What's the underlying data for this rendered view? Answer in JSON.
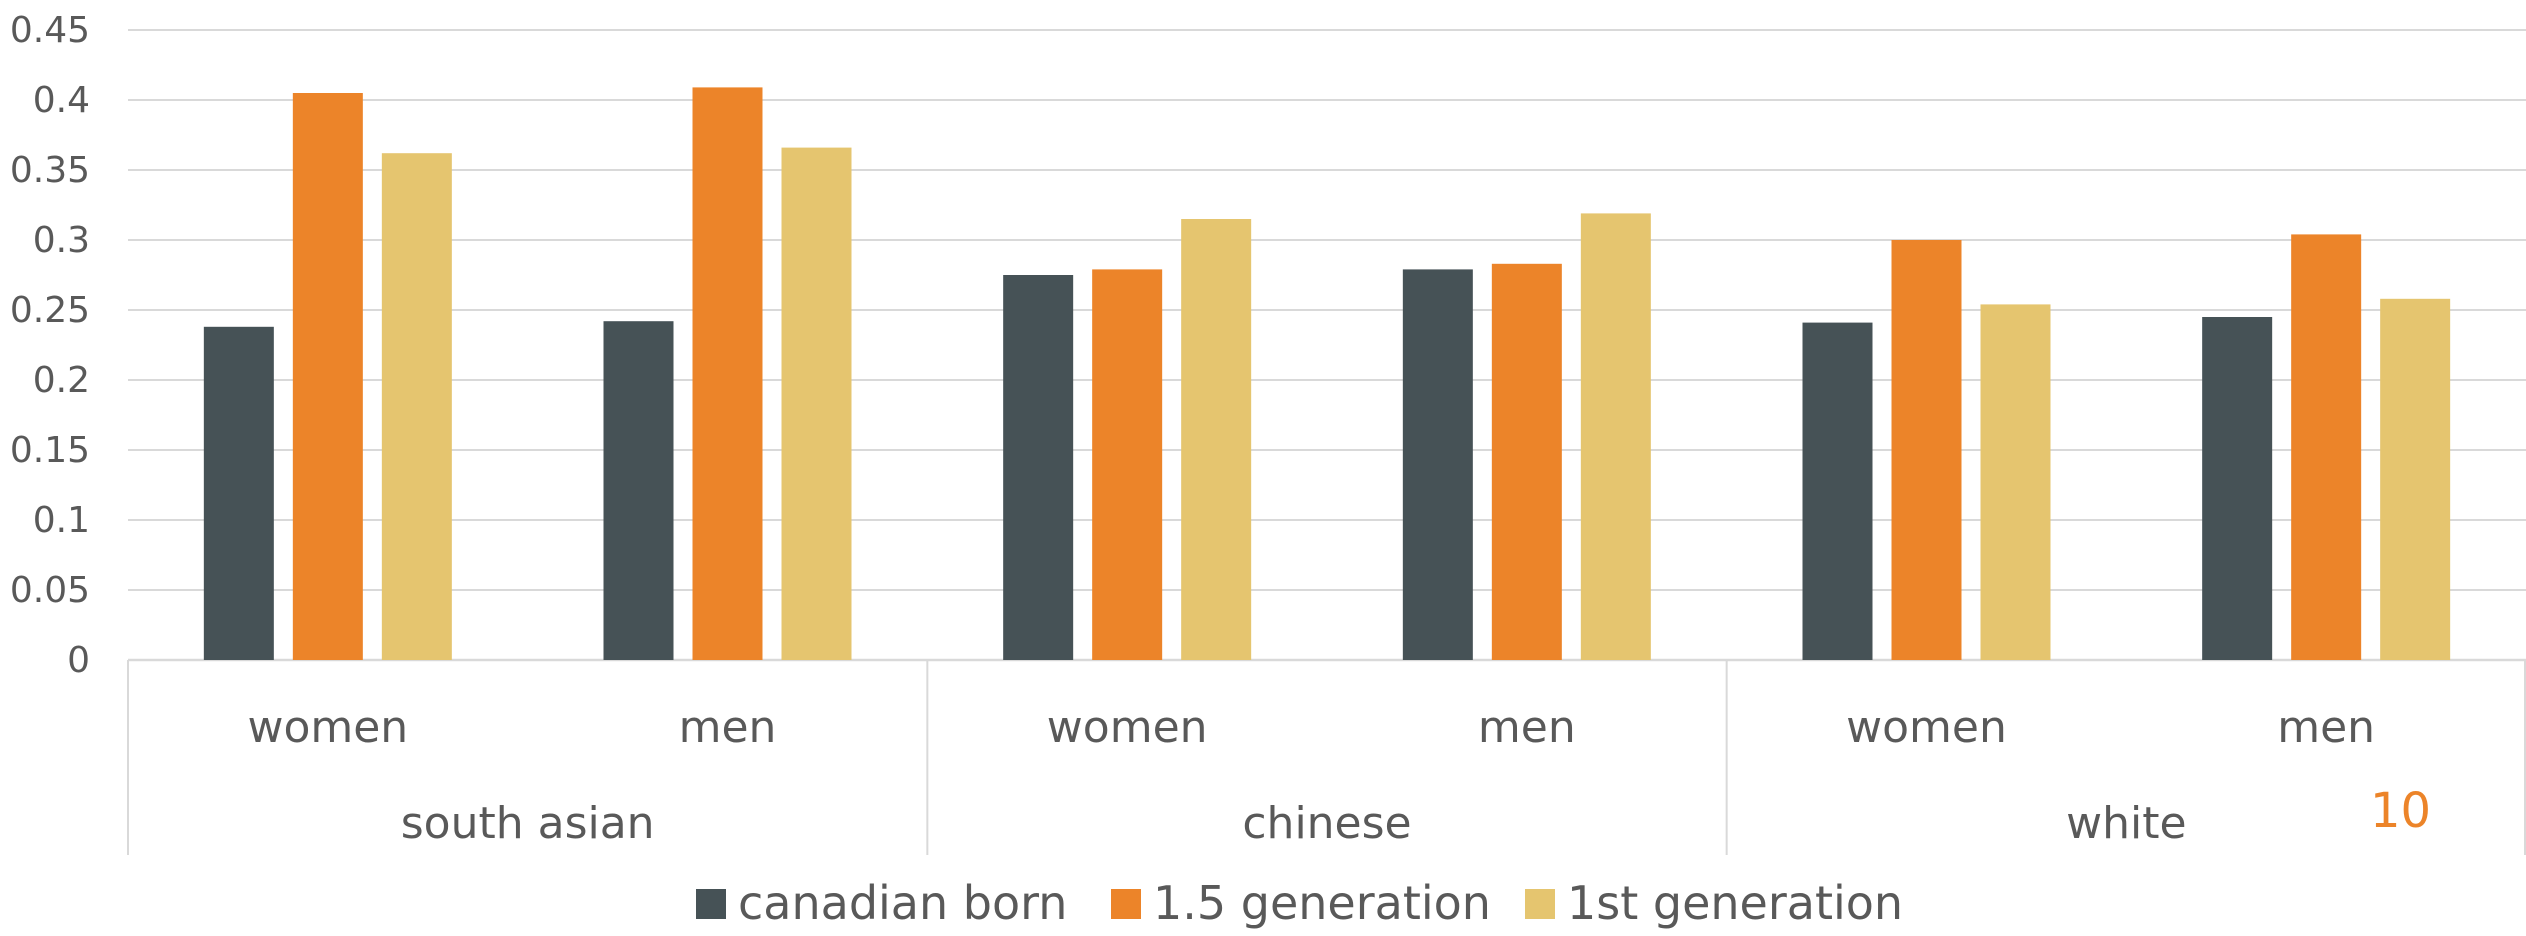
{
  "chart_data": {
    "type": "bar",
    "groups": [
      {
        "name": "south asian",
        "subcategories": [
          "women",
          "men"
        ]
      },
      {
        "name": "chinese",
        "subcategories": [
          "women",
          "men"
        ]
      },
      {
        "name": "white",
        "subcategories": [
          "women",
          "men"
        ]
      }
    ],
    "series": [
      {
        "name": "canadian born",
        "color": "#465256",
        "values": [
          0.238,
          0.242,
          0.275,
          0.279,
          0.241,
          0.245
        ]
      },
      {
        "name": "1.5 generation",
        "color": "#EC8429",
        "values": [
          0.405,
          0.409,
          0.279,
          0.283,
          0.3,
          0.304
        ]
      },
      {
        "name": "1st generation",
        "color": "#E5C56F",
        "values": [
          0.362,
          0.366,
          0.315,
          0.319,
          0.254,
          0.258
        ]
      }
    ],
    "ylim": [
      0,
      0.45
    ],
    "yticks": [
      "0",
      "0.05",
      "0.1",
      "0.15",
      "0.2",
      "0.25",
      "0.3",
      "0.35",
      "0.4",
      "0.45"
    ],
    "grid": true,
    "legend_position": "bottom",
    "title": "",
    "xlabel": "",
    "ylabel": ""
  },
  "page_number": "10",
  "colors": {
    "page_number": "#EC8429",
    "gridline": "#D9D9D9",
    "axis_text": "#595959"
  }
}
